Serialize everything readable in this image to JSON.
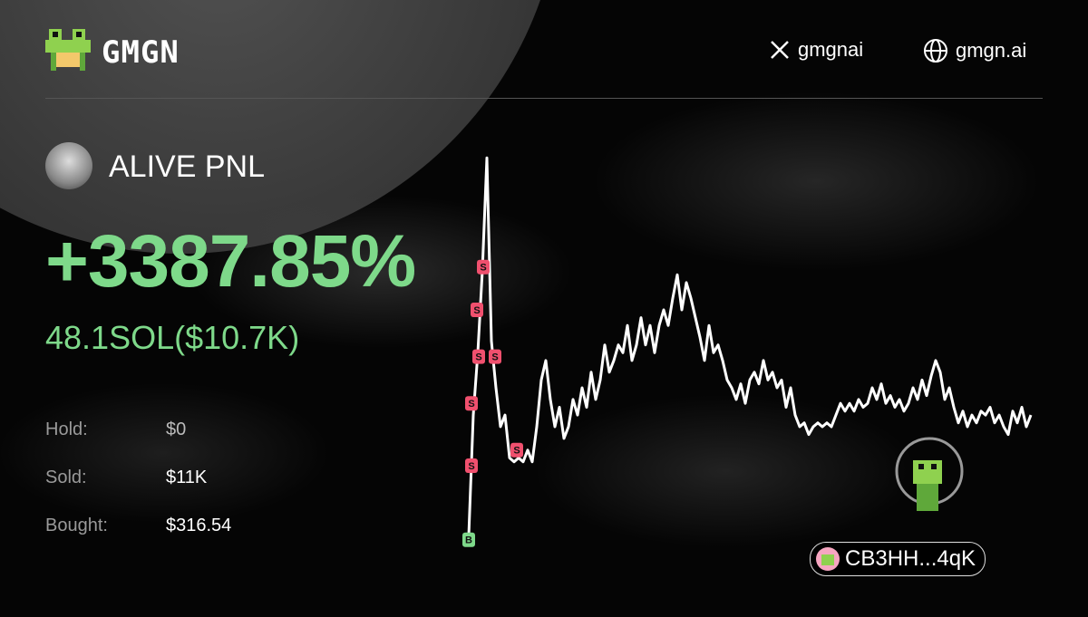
{
  "header": {
    "brand": "GMGN",
    "twitter": "gmgnai",
    "website": "gmgn.ai"
  },
  "profile": {
    "name": "ALIVE PNL"
  },
  "pnl": {
    "percent": "+3387.85%",
    "amount": "48.1SOL($10.7K)"
  },
  "stats": [
    {
      "label": "Hold:",
      "value": "$0"
    },
    {
      "label": "Sold:",
      "value": "$11K"
    },
    {
      "label": "Bought:",
      "value": "$316.54"
    }
  ],
  "wallet": {
    "address": "CB3HH...4qK"
  },
  "chart_data": {
    "type": "line",
    "color": "#ffffff",
    "ylim": [
      0,
      100
    ],
    "values": [
      2,
      33,
      49,
      70,
      99,
      52,
      40,
      30,
      33,
      22,
      21,
      22,
      21,
      24,
      21,
      30,
      42,
      47,
      37,
      30,
      35,
      27,
      30,
      37,
      33,
      40,
      35,
      44,
      37,
      42,
      51,
      44,
      47,
      51,
      49,
      56,
      47,
      51,
      58,
      51,
      56,
      49,
      56,
      60,
      56,
      63,
      69,
      60,
      67,
      63,
      58,
      53,
      47,
      56,
      49,
      51,
      47,
      42,
      40,
      37,
      41,
      36,
      42,
      44,
      41,
      47,
      42,
      44,
      40,
      42,
      35,
      40,
      33,
      30,
      31,
      28,
      30,
      31,
      30,
      31,
      30,
      33,
      36,
      34,
      36,
      34,
      37,
      35,
      36,
      40,
      37,
      41,
      36,
      38,
      35,
      37,
      34,
      36,
      40,
      37,
      42,
      38,
      43,
      47,
      44,
      37,
      40,
      35,
      31,
      34,
      30,
      33,
      31,
      34,
      33,
      35,
      31,
      33,
      30,
      28,
      34,
      31,
      35,
      30,
      33
    ],
    "markers": [
      {
        "label": "B",
        "x": 0,
        "value": 1,
        "color": "#7ed98a"
      },
      {
        "label": "S",
        "x": 0.6,
        "value": 20,
        "color": "#f0506e"
      },
      {
        "label": "S",
        "x": 0.6,
        "value": 36,
        "color": "#f0506e"
      },
      {
        "label": "S",
        "x": 1.8,
        "value": 60,
        "color": "#f0506e"
      },
      {
        "label": "S",
        "x": 2.2,
        "value": 48,
        "color": "#f0506e"
      },
      {
        "label": "S",
        "x": 3.2,
        "value": 71,
        "color": "#f0506e"
      },
      {
        "label": "S",
        "x": 5.8,
        "value": 48,
        "color": "#f0506e"
      },
      {
        "label": "S",
        "x": 10.6,
        "value": 24,
        "color": "#f0506e"
      }
    ]
  }
}
